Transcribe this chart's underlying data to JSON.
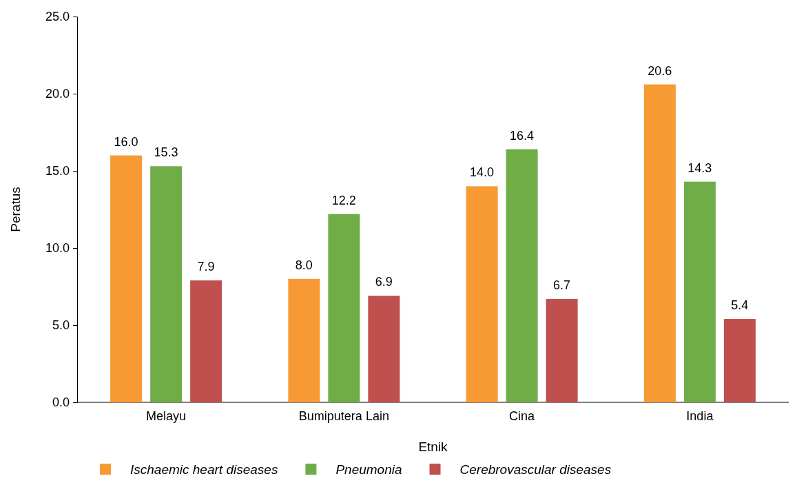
{
  "chart_data": {
    "type": "bar",
    "xlabel": "Etnik",
    "ylabel": "Peratus",
    "categories": [
      "Melayu",
      "Bumiputera Lain",
      "Cina",
      "India"
    ],
    "series": [
      {
        "name": "Ischaemic heart diseases",
        "color": "#f79a33",
        "values": [
          16.0,
          8.0,
          14.0,
          20.6
        ],
        "value_labels": [
          "16.0",
          "8.0",
          "14.0",
          "20.6"
        ]
      },
      {
        "name": "Pneumonia",
        "color": "#70ad47",
        "values": [
          15.3,
          12.2,
          16.4,
          14.3
        ],
        "value_labels": [
          "15.3",
          "12.2",
          "16.4",
          "14.3"
        ]
      },
      {
        "name": "Cerebrovascular diseases",
        "color": "#c0504d",
        "values": [
          7.9,
          6.9,
          6.7,
          5.4
        ],
        "value_labels": [
          "7.9",
          "6.9",
          "6.7",
          "5.4"
        ]
      }
    ],
    "ylim": [
      0,
      25
    ],
    "yticks": [
      {
        "value": 0,
        "label": "0.0"
      },
      {
        "value": 5,
        "label": "5.0"
      },
      {
        "value": 10,
        "label": "10.0"
      },
      {
        "value": 15,
        "label": "15.0"
      },
      {
        "value": 20,
        "label": "20.0"
      },
      {
        "value": 25,
        "label": "25.0"
      }
    ],
    "grid": false,
    "legend": "bottom"
  }
}
